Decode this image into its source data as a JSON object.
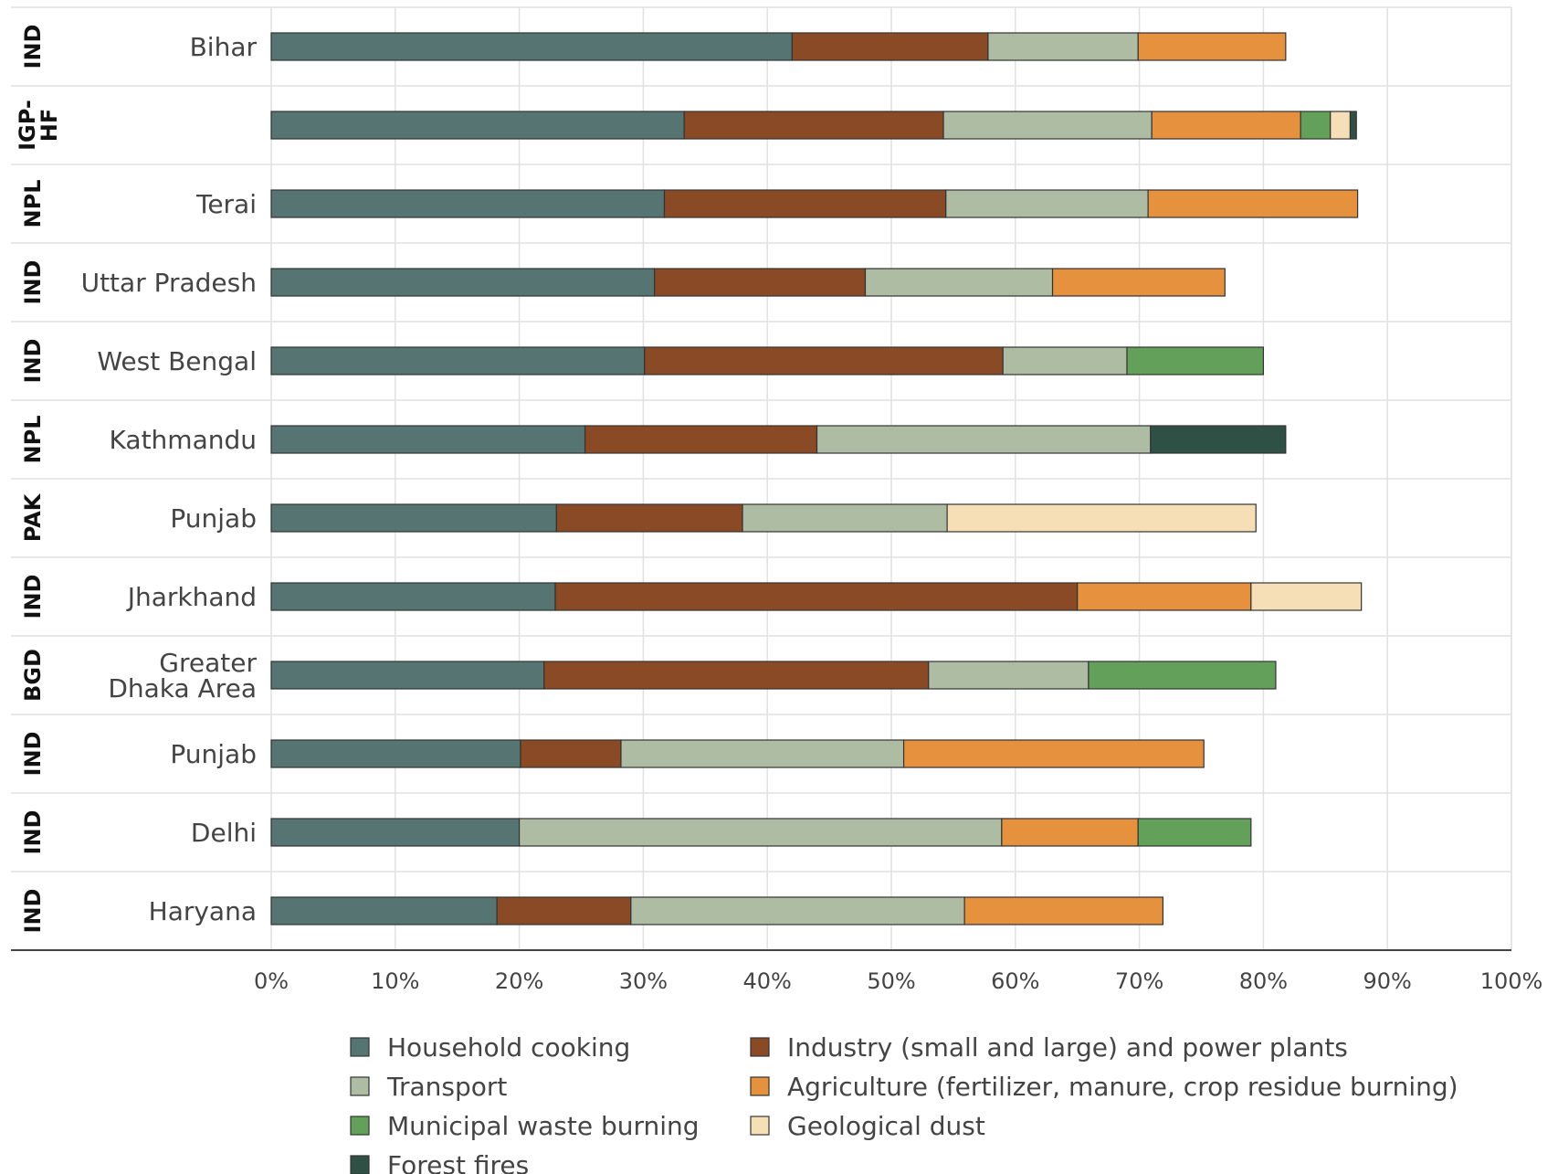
{
  "chart_data": {
    "type": "bar",
    "orientation": "horizontal",
    "stacked": true,
    "rows": [
      {
        "country": "IND",
        "region": "Bihar"
      },
      {
        "country": "IGP-HF",
        "region": ""
      },
      {
        "country": "NPL",
        "region": "Terai"
      },
      {
        "country": "IND",
        "region": "Uttar Pradesh"
      },
      {
        "country": "IND",
        "region": "West Bengal"
      },
      {
        "country": "NPL",
        "region": "Kathmandu"
      },
      {
        "country": "PAK",
        "region": "Punjab"
      },
      {
        "country": "IND",
        "region": "Jharkhand"
      },
      {
        "country": "BGD",
        "region": "Greater Dhaka Area"
      },
      {
        "country": "IND",
        "region": "Punjab"
      },
      {
        "country": "IND",
        "region": "Delhi"
      },
      {
        "country": "IND",
        "region": "Haryana"
      }
    ],
    "series": [
      {
        "name": "Household cooking",
        "color": "#567572",
        "values": [
          42,
          33.3,
          31.7,
          30.9,
          30.1,
          25.3,
          23,
          22.9,
          22,
          20.1,
          20,
          18.2
        ]
      },
      {
        "name": "Industry (small and large) and power plants",
        "color": "#8a4a26",
        "values": [
          15.8,
          20.9,
          22.7,
          17,
          28.9,
          18.7,
          15,
          42.1,
          31,
          8.1,
          0,
          10.8
        ]
      },
      {
        "name": "Transport",
        "color": "#afbca4",
        "values": [
          12.1,
          16.8,
          16.3,
          15.1,
          10,
          26.9,
          16.5,
          0,
          12.9,
          22.8,
          38.9,
          26.9
        ]
      },
      {
        "name": "Agriculture (fertilizer, manure, crop residue burning)",
        "color": "#e6913e",
        "values": [
          11.9,
          12,
          16.9,
          13.9,
          0,
          0,
          0,
          14,
          0,
          24.2,
          11,
          16
        ]
      },
      {
        "name": "Municipal waste burning",
        "color": "#63a15b",
        "values": [
          0,
          2.4,
          0,
          0,
          11,
          0,
          0,
          0,
          15.1,
          0,
          9.1,
          0
        ]
      },
      {
        "name": "Geological dust",
        "color": "#f6dfb7",
        "values": [
          0,
          1.6,
          0,
          0,
          0,
          0,
          24.9,
          8.9,
          0,
          0,
          0,
          0
        ]
      },
      {
        "name": "Forest fires",
        "color": "#2f5145",
        "values": [
          0,
          0.5,
          0,
          0,
          0,
          10.9,
          0,
          0,
          0,
          0,
          0,
          0
        ]
      }
    ],
    "x_ticks": [
      "0%",
      "10%",
      "20%",
      "30%",
      "40%",
      "50%",
      "60%",
      "70%",
      "80%",
      "90%",
      "100%"
    ],
    "xlim": [
      0,
      100
    ],
    "xlabel": "",
    "ylabel": "",
    "title": "",
    "grid": true,
    "legend_position": "bottom"
  }
}
